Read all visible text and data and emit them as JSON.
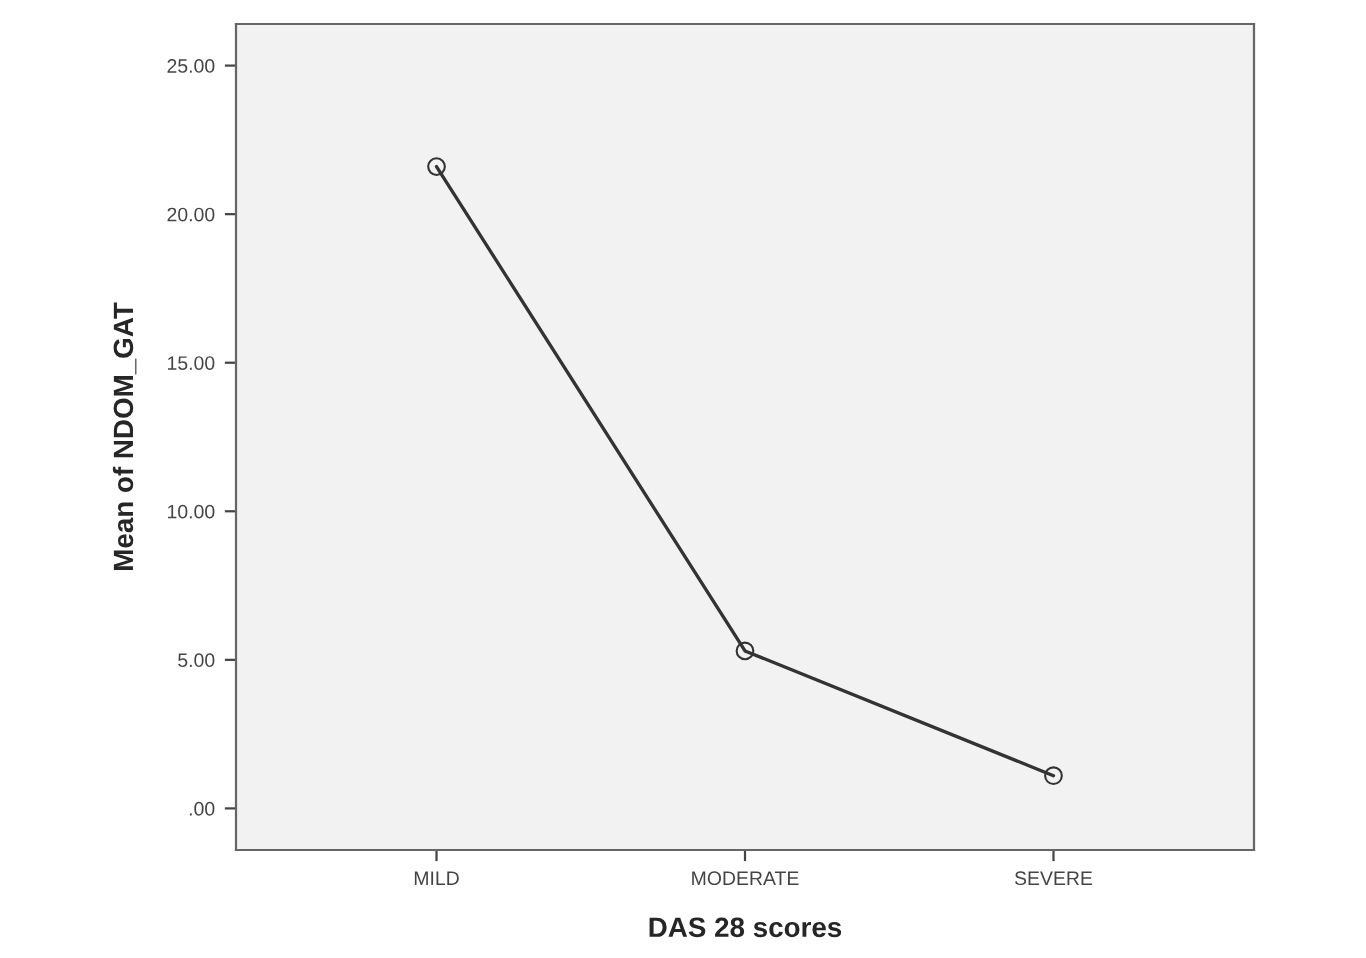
{
  "chart_data": {
    "type": "line",
    "xlabel": "DAS 28 scores",
    "ylabel": "Mean of NDOM_GAT",
    "categories": [
      "MILD",
      "MODERATE",
      "SEVERE"
    ],
    "series": [
      {
        "color": "#333333",
        "values": [
          21.6,
          5.3,
          1.1
        ]
      }
    ],
    "ylim": [
      -1.4,
      26.4
    ],
    "yticks": [
      {
        "value": 0,
        "label": ".00"
      },
      {
        "value": 5,
        "label": "5.00"
      },
      {
        "value": 10,
        "label": "10.00"
      },
      {
        "value": 15,
        "label": "15.00"
      },
      {
        "value": 20,
        "label": "20.00"
      },
      {
        "value": 25,
        "label": "25.00"
      }
    ],
    "marker": "circle",
    "line_style": "solid",
    "grid": false
  }
}
